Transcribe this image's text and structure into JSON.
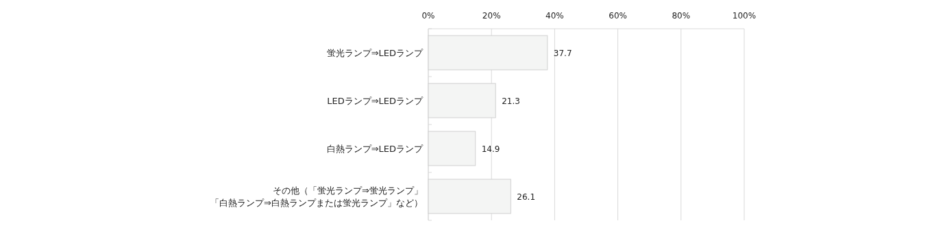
{
  "chart_data": {
    "type": "bar",
    "orientation": "horizontal",
    "categories": [
      "蛍光ランプ⇒LEDランプ",
      "LEDランプ⇒LEDランプ",
      "白熱ランプ⇒LEDランプ",
      "その他（「蛍光ランプ⇒蛍光ランプ」「白熱ランプ⇒白熱ランプまたは蛍光ランプ」など）"
    ],
    "values": [
      37.7,
      21.3,
      14.9,
      26.1
    ],
    "color": "#f4f5f4",
    "xlim": [
      0,
      100
    ],
    "xticks": [
      {
        "value": 0,
        "label": "0%"
      },
      {
        "value": 20,
        "label": "20%"
      },
      {
        "value": 40,
        "label": "40%"
      },
      {
        "value": 60,
        "label": "60%"
      },
      {
        "value": 80,
        "label": "80%"
      },
      {
        "value": 100,
        "label": "100%"
      }
    ],
    "grid": "x",
    "data_labels": true
  }
}
